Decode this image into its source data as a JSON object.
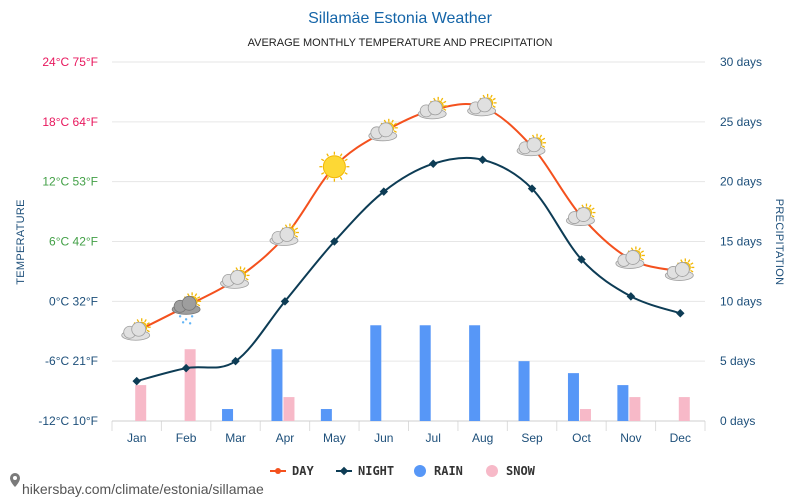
{
  "chart_data": {
    "type": "line+bar",
    "title": "Sillamäe Estonia Weather",
    "subtitle": "AVERAGE MONTHLY TEMPERATURE AND PRECIPITATION",
    "categories": [
      "Jan",
      "Feb",
      "Mar",
      "Apr",
      "May",
      "Jun",
      "Jul",
      "Aug",
      "Sep",
      "Oct",
      "Nov",
      "Dec"
    ],
    "left_axis": {
      "label": "TEMPERATURE",
      "range_c": [
        -12,
        24
      ],
      "ticks": [
        {
          "c": 24,
          "text": "24°C 75°F",
          "color": "#e8175d"
        },
        {
          "c": 18,
          "text": "18°C 64°F",
          "color": "#e8175d"
        },
        {
          "c": 12,
          "text": "12°C 53°F",
          "color": "#43a047"
        },
        {
          "c": 6,
          "text": "6°C 42°F",
          "color": "#43a047"
        },
        {
          "c": 0,
          "text": "0°C 32°F",
          "color": "#1d4f7a"
        },
        {
          "c": -6,
          "text": "-6°C 21°F",
          "color": "#1d4f7a"
        },
        {
          "c": -12,
          "text": "-12°C 10°F",
          "color": "#1d4f7a"
        }
      ]
    },
    "right_axis": {
      "label": "PRECIPITATION",
      "range_days": [
        0,
        30
      ],
      "ticks": [
        {
          "v": 30,
          "text": "30 days"
        },
        {
          "v": 25,
          "text": "25 days"
        },
        {
          "v": 20,
          "text": "20 days"
        },
        {
          "v": 15,
          "text": "15 days"
        },
        {
          "v": 10,
          "text": "10 days"
        },
        {
          "v": 5,
          "text": "5 days"
        },
        {
          "v": 0,
          "text": "0 days"
        }
      ]
    },
    "series": [
      {
        "name": "DAY",
        "kind": "line",
        "color": "#f4511e",
        "values": [
          -3,
          -0.5,
          2.2,
          6.5,
          13.5,
          17,
          19.2,
          19.5,
          15.5,
          8.5,
          4.2,
          3
        ]
      },
      {
        "name": "NIGHT",
        "kind": "line",
        "color": "#0d3c55",
        "values": [
          -8,
          -6.7,
          -6,
          0,
          6,
          11,
          13.8,
          14.2,
          11.3,
          4.2,
          0.5,
          -1.2
        ]
      },
      {
        "name": "RAIN",
        "kind": "bar",
        "color": "#5797f7",
        "values": [
          0,
          0,
          1,
          6,
          1,
          8,
          8,
          8,
          5,
          4,
          3,
          0
        ]
      },
      {
        "name": "SNOW",
        "kind": "bar",
        "color": "#f7b9c8",
        "values": [
          3,
          6,
          0,
          2,
          0,
          0,
          0,
          0,
          0,
          1,
          2,
          2
        ]
      }
    ],
    "weather_icons": [
      "partly-cloudy",
      "snow-cloud",
      "partly-cloudy",
      "partly-cloudy",
      "sunny",
      "partly-cloudy",
      "partly-cloudy",
      "partly-cloudy",
      "partly-cloudy",
      "partly-cloudy",
      "partly-cloudy",
      "partly-cloudy"
    ]
  },
  "legend": [
    {
      "label": "DAY",
      "color": "#f4511e",
      "shape": "line-dot"
    },
    {
      "label": "NIGHT",
      "color": "#0d3c55",
      "shape": "line-diamond"
    },
    {
      "label": "RAIN",
      "color": "#5797f7",
      "shape": "circle"
    },
    {
      "label": "SNOW",
      "color": "#f7b9c8",
      "shape": "circle"
    }
  ],
  "footer": {
    "text": "hikersbay.com/climate/estonia/sillamae"
  }
}
